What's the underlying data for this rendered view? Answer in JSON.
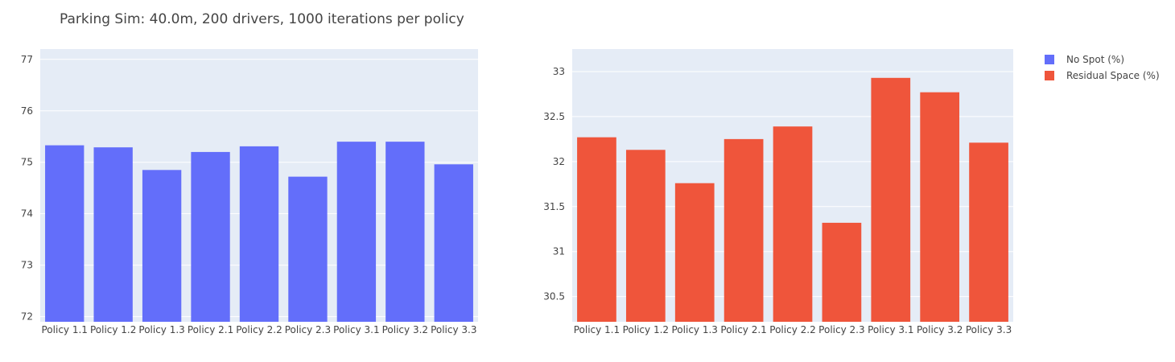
{
  "title": "Parking Sim: 40.0m, 200 drivers, 1000 iterations per policy",
  "legend": [
    {
      "label": "No Spot (%)",
      "color": "#636efa"
    },
    {
      "label": "Residual Space (%)",
      "color": "#ef553b"
    }
  ],
  "chart_data": [
    {
      "type": "bar",
      "series_name": "No Spot (%)",
      "color": "#636efa",
      "categories": [
        "Policy 1.1",
        "Policy 1.2",
        "Policy 1.3",
        "Policy 2.1",
        "Policy 2.2",
        "Policy 2.3",
        "Policy 3.1",
        "Policy 3.2",
        "Policy 3.3"
      ],
      "values": [
        75.33,
        75.29,
        74.85,
        75.2,
        75.31,
        74.72,
        75.4,
        75.4,
        74.96
      ],
      "ylim": [
        71.9,
        77.2
      ],
      "yticks": [
        72,
        73,
        74,
        75,
        76,
        77
      ],
      "grid": true
    },
    {
      "type": "bar",
      "series_name": "Residual Space (%)",
      "color": "#ef553b",
      "categories": [
        "Policy 1.1",
        "Policy 1.2",
        "Policy 1.3",
        "Policy 2.1",
        "Policy 2.2",
        "Policy 2.3",
        "Policy 3.1",
        "Policy 3.2",
        "Policy 3.3"
      ],
      "values": [
        32.27,
        32.13,
        31.76,
        32.25,
        32.39,
        31.32,
        32.93,
        32.77,
        32.21
      ],
      "ylim": [
        30.22,
        33.25
      ],
      "yticks": [
        30.5,
        31,
        31.5,
        32,
        32.5,
        33
      ],
      "ytick_labels": [
        "30.5",
        "31",
        "31.5",
        "32",
        "32.5",
        "33"
      ],
      "grid": true
    }
  ]
}
